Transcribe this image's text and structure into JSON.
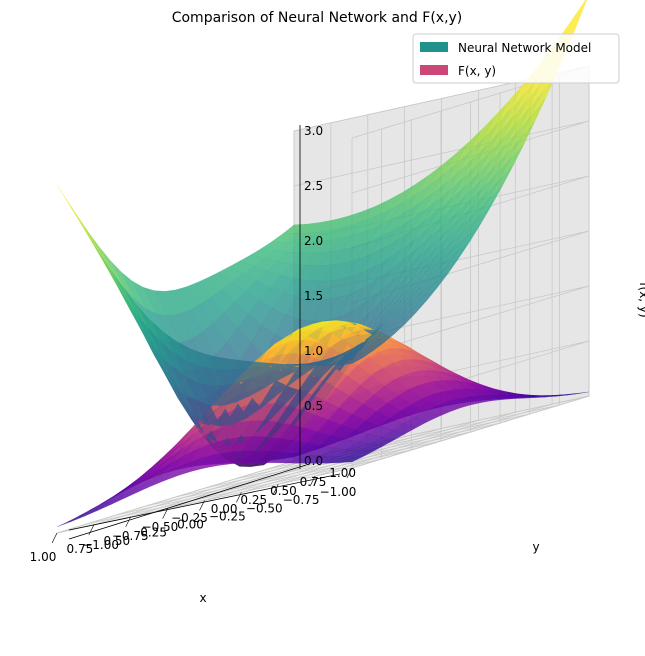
{
  "chart_data": {
    "type": "surface3d",
    "title": "Comparison of Neural Network and F(x,y)",
    "xlabel": "x",
    "ylabel": "y",
    "zlabel": "f(x, y)",
    "xlim": [
      -1.0,
      1.0
    ],
    "ylim": [
      -1.0,
      1.0
    ],
    "zlim": [
      0.0,
      3.0
    ],
    "xticks": [
      "−1.00",
      "−0.75",
      "−0.50",
      "−0.25",
      "0.00",
      "0.25",
      "0.50",
      "0.75",
      "1.00"
    ],
    "yticks": [
      "−1.00",
      "−0.75",
      "−0.50",
      "−0.25",
      "0.00",
      "0.25",
      "0.50",
      "0.75",
      "1.00"
    ],
    "zticks": [
      "0.0",
      "0.5",
      "1.0",
      "1.5",
      "2.0",
      "2.5",
      "3.0"
    ],
    "grid": true,
    "legend_position": "top-right",
    "legend": [
      {
        "label": "Neural Network Model",
        "color": "#21918c"
      },
      {
        "label": "F(x, y)",
        "color": "#cc4778"
      }
    ],
    "series": [
      {
        "name": "Neural Network Model",
        "colormap": "viridis"
      },
      {
        "name": "F(x, y)",
        "colormap": "plasma"
      }
    ],
    "sample_points": [
      {
        "x": -1.0,
        "y": 1.0,
        "nn": 3.0
      },
      {
        "x": -1.0,
        "y": -1.0,
        "nn": 1.2
      },
      {
        "x": 1.0,
        "y": 1.0,
        "nn": 0.95
      },
      {
        "x": 0.4,
        "y": -0.6,
        "nn": 0.0
      },
      {
        "x": 0.0,
        "y": 0.0,
        "F": 1.3
      }
    ]
  }
}
